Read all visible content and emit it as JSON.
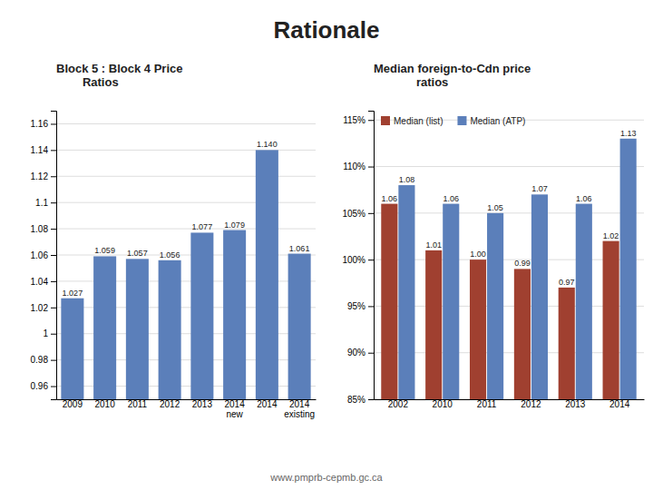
{
  "title": "Rationale",
  "annotations": [
    "www.pmprb-cepmb.gc.ca"
  ],
  "chart_data": [
    {
      "type": "bar",
      "title": "Block 5 : Block 4 Price\n        Ratios",
      "categories": [
        "2009",
        "2010",
        "2011",
        "2012",
        "2013",
        "2014\nnew",
        "2014",
        "2014\nexisting"
      ],
      "values": [
        1.027,
        1.059,
        1.057,
        1.056,
        1.077,
        1.079,
        1.14,
        1.061
      ],
      "value_labels": [
        "1.027",
        "1.059",
        "1.057",
        "1.056",
        "1.077",
        "1.079",
        "1.140",
        "1.061"
      ],
      "color": "#5b7fba",
      "ylim": [
        0.95,
        1.17
      ],
      "yticks": [
        0.96,
        0.98,
        1,
        1.02,
        1.04,
        1.06,
        1.08,
        1.1,
        1.12,
        1.14,
        1.16
      ],
      "grid": true,
      "data_labels": true
    },
    {
      "type": "bar",
      "title": "Median foreign-to-Cdn price\n             ratios",
      "categories": [
        "2002",
        "2010",
        "2011",
        "2012",
        "2013",
        "2014"
      ],
      "series": [
        {
          "name": "Median (list)",
          "color": "#a04030",
          "values": [
            1.06,
            1.01,
            1,
            0.99,
            0.97,
            1.02
          ],
          "value_labels": [
            "1.06",
            "1.01",
            "1.00",
            "0.99",
            "0.97",
            "1.02"
          ]
        },
        {
          "name": "Median (ATP)",
          "color": "#5b7fba",
          "values": [
            1.08,
            1.06,
            1.05,
            1.07,
            1.06,
            1.13
          ],
          "value_labels": [
            "1.08",
            "1.06",
            "1.05",
            "1.07",
            "1.06",
            "1.13"
          ]
        }
      ],
      "ylim": [
        0.85,
        1.16
      ],
      "yticks": [
        {
          "value": 0.85,
          "label": "85%"
        },
        {
          "value": 0.9,
          "label": "90%"
        },
        {
          "value": 0.95,
          "label": "95%"
        },
        {
          "value": 1,
          "label": "100%"
        },
        {
          "value": 1.05,
          "label": "105%"
        },
        {
          "value": 1.1,
          "label": "110%"
        },
        {
          "value": 1.15,
          "label": "115%"
        }
      ],
      "grid": true,
      "legend": "upper left",
      "data_labels": true
    }
  ]
}
